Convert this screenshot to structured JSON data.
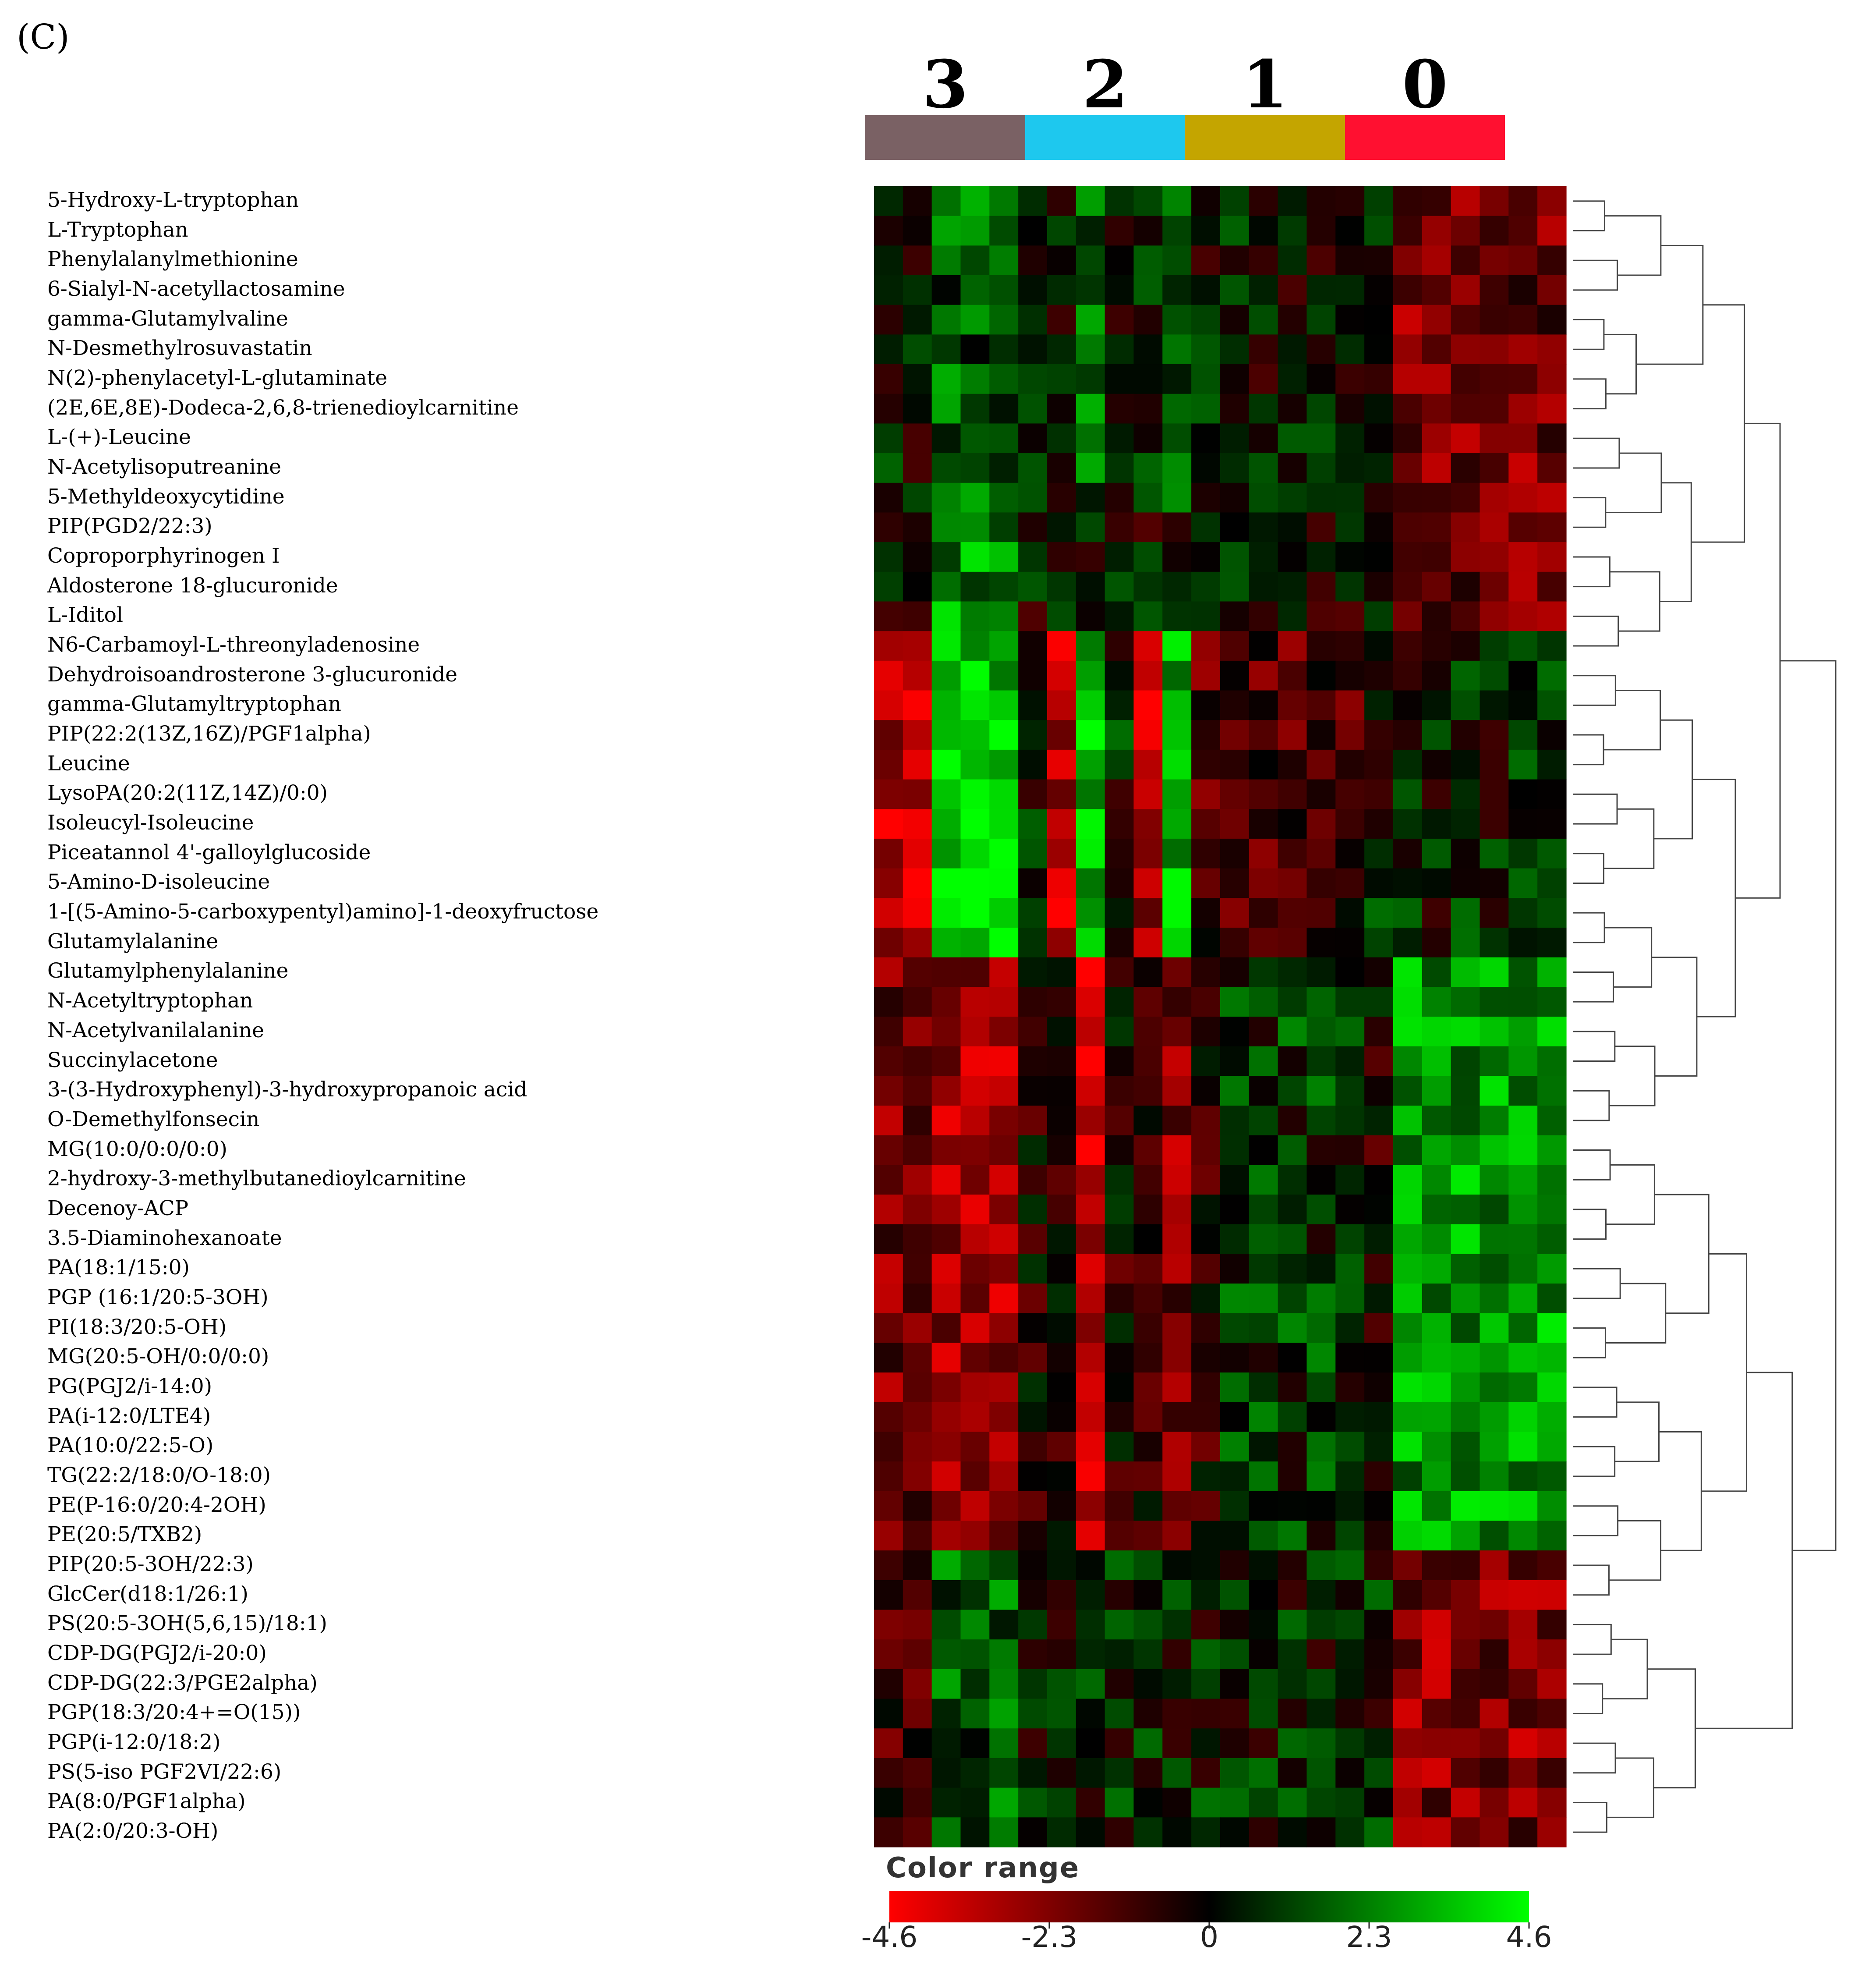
{
  "panel_label": "(C)",
  "chart_data": {
    "type": "heatmap",
    "title": "",
    "groups": [
      {
        "label": "3",
        "color": "#7a6164"
      },
      {
        "label": "2",
        "color": "#1ec8ee"
      },
      {
        "label": "1",
        "color": "#c4a500"
      },
      {
        "label": "0",
        "color": "#ff1030"
      }
    ],
    "n_columns": 24,
    "rows": [
      "5-Hydroxy-L-tryptophan",
      "L-Tryptophan",
      "Phenylalanylmethionine",
      "6-Sialyl-N-acetyllactosamine",
      "gamma-Glutamylvaline",
      "N-Desmethylrosuvastatin",
      "N(2)-phenylacetyl-L-glutaminate",
      "(2E,6E,8E)-Dodeca-2,6,8-trienedioylcarnitine",
      "L-(+)-Leucine",
      "N-Acetylisoputreanine",
      "5-Methyldeoxycytidine",
      "PIP(PGD2/22:3)",
      "Coproporphyrinogen I",
      "Aldosterone 18-glucuronide",
      "L-Iditol",
      "N6-Carbamoyl-L-threonyladenosine",
      "Dehydroisoandrosterone 3-glucuronide",
      "gamma-Glutamyltryptophan",
      "PIP(22:2(13Z,16Z)/PGF1alpha)",
      "Leucine",
      "LysoPA(20:2(11Z,14Z)/0:0)",
      "Isoleucyl-Isoleucine",
      "Piceatannol 4'-galloylglucoside",
      "5-Amino-D-isoleucine",
      "1-[(5-Amino-5-carboxypentyl)amino]-1-deoxyfructose",
      "Glutamylalanine",
      "Glutamylphenylalanine",
      "N-Acetyltryptophan",
      "N-Acetylvanilalanine",
      "Succinylacetone",
      "3-(3-Hydroxyphenyl)-3-hydroxypropanoic acid",
      "O-Demethylfonsecin",
      "MG(10:0/0:0/0:0)",
      "2-hydroxy-3-methylbutanedioylcarnitine",
      "Decenoy-ACP",
      "3.5-Diaminohexanoate",
      " PA(18:1/15:0)",
      " PGP (16:1/20:5-3OH)",
      "PI(18:3/20:5-OH)",
      "MG(20:5-OH/0:0/0:0)",
      "PG(PGJ2/i-14:0)",
      "PA(i-12:0/LTE4)",
      "PA(10:0/22:5-O)",
      "TG(22:2/18:0/O-18:0)",
      "PE(P-16:0/20:4-2OH)",
      "PE(20:5/TXB2)",
      "PIP(20:5-3OH/22:3)",
      "GlcCer(d18:1/26:1)",
      "PS(20:5-3OH(5,6,15)/18:1)",
      "CDP-DG(PGJ2/i-20:0)",
      "CDP-DG(22:3/PGE2alpha)",
      "PGP(18:3/20:4+=O(15))",
      "PGP(i-12:0/18:2)",
      "PS(5-iso PGF2VI/22:6)",
      "PA(8:0/PGF1alpha)",
      "PA(2:0/20:3-OH)"
    ],
    "value_range": [
      -4.6,
      4.6
    ],
    "colorscale": [
      "#ff0000",
      "#000000",
      "#00ff00"
    ],
    "legend": {
      "title": "Color range",
      "ticks": [
        "-4.6",
        "-2.3",
        "0",
        "2.3",
        "4.6"
      ]
    },
    "dendrogram": "rows"
  }
}
